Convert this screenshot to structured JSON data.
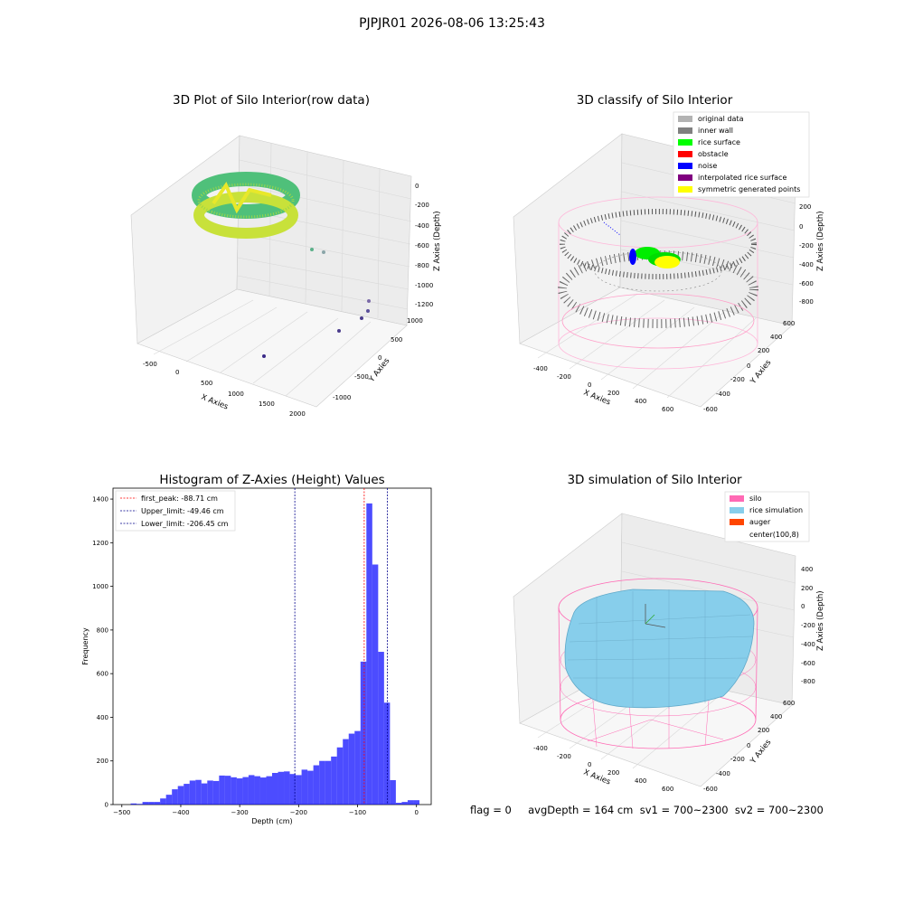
{
  "suptitle": "PJPJR01 2026-08-06 13:25:43",
  "panel1": {
    "title": "3D Plot of Silo Interior(row data)",
    "xlabel": "X Axies",
    "ylabel": "Y Axies",
    "zlabel": "Z Axies (Depth)",
    "xticks": [
      "-500",
      "0",
      "500",
      "1000",
      "1500",
      "2000"
    ],
    "yticks": [
      "-1000",
      "-500",
      "0",
      "500",
      "1000"
    ],
    "zticks": [
      "0",
      "-200",
      "-400",
      "-600",
      "-800",
      "-1000",
      "-1200"
    ]
  },
  "panel2": {
    "title": "3D classify of Silo Interior",
    "xlabel": "X Axies",
    "ylabel": "Y Axies",
    "zlabel": "Z Axies (Depth)",
    "xticks": [
      "-400",
      "-200",
      "0",
      "200",
      "400",
      "600"
    ],
    "yticks": [
      "-600",
      "-400",
      "-200",
      "0",
      "200",
      "400",
      "600"
    ],
    "zticks": [
      "200",
      "0",
      "-200",
      "-400",
      "-600",
      "-800"
    ],
    "legend": [
      {
        "label": "original data",
        "color": "#b3b3b3"
      },
      {
        "label": "inner wall",
        "color": "#808080"
      },
      {
        "label": "rice surface",
        "color": "#00ff00"
      },
      {
        "label": "obstacle",
        "color": "#ff0000"
      },
      {
        "label": "noise",
        "color": "#0000ff"
      },
      {
        "label": "interpolated rice surface",
        "color": "#800080"
      },
      {
        "label": "symmetric generated points",
        "color": "#ffff00"
      }
    ]
  },
  "panel4": {
    "title": "3D simulation of Silo Interior",
    "xlabel": "X Axies",
    "ylabel": "Y Axies",
    "zlabel": "Z Axies (Depth)",
    "xticks": [
      "-400",
      "-200",
      "0",
      "200",
      "400",
      "600"
    ],
    "yticks": [
      "-600",
      "-400",
      "-200",
      "0",
      "200",
      "400",
      "600"
    ],
    "zticks": [
      "400",
      "200",
      "0",
      "-200",
      "-400",
      "-600",
      "-800"
    ],
    "legend": [
      {
        "label": "silo",
        "color": "#ff69b4"
      },
      {
        "label": "rice simulation",
        "color": "#87ceeb"
      },
      {
        "label": "auger",
        "color": "#ff4500"
      },
      {
        "label": "center(100,8)",
        "color": "#ffffff"
      }
    ]
  },
  "status": "flag = 0     avgDepth = 164 cm  sv1 = 700~2300  sv2 = 700~2300",
  "chart_data": {
    "type": "bar",
    "title": "Histogram of Z-Axies (Height) Values",
    "xlabel": "Depth (cm)",
    "ylabel": "Frequency",
    "xlim": [
      -515,
      25
    ],
    "ylim": [
      0,
      1450
    ],
    "xticks": [
      -500,
      -400,
      -300,
      -200,
      -100,
      0
    ],
    "yticks": [
      0,
      200,
      400,
      600,
      800,
      1000,
      1200,
      1400
    ],
    "bin_width": 10,
    "bins": [
      {
        "x0": -485,
        "v": 5
      },
      {
        "x0": -475,
        "v": 3
      },
      {
        "x0": -465,
        "v": 12
      },
      {
        "x0": -455,
        "v": 12
      },
      {
        "x0": -445,
        "v": 12
      },
      {
        "x0": -435,
        "v": 28
      },
      {
        "x0": -425,
        "v": 45
      },
      {
        "x0": -415,
        "v": 70
      },
      {
        "x0": -405,
        "v": 85
      },
      {
        "x0": -395,
        "v": 95
      },
      {
        "x0": -385,
        "v": 110
      },
      {
        "x0": -375,
        "v": 113
      },
      {
        "x0": -365,
        "v": 97
      },
      {
        "x0": -355,
        "v": 110
      },
      {
        "x0": -345,
        "v": 108
      },
      {
        "x0": -335,
        "v": 133
      },
      {
        "x0": -325,
        "v": 132
      },
      {
        "x0": -315,
        "v": 125
      },
      {
        "x0": -305,
        "v": 120
      },
      {
        "x0": -295,
        "v": 126
      },
      {
        "x0": -285,
        "v": 135
      },
      {
        "x0": -275,
        "v": 130
      },
      {
        "x0": -265,
        "v": 124
      },
      {
        "x0": -255,
        "v": 130
      },
      {
        "x0": -245,
        "v": 145
      },
      {
        "x0": -235,
        "v": 150
      },
      {
        "x0": -225,
        "v": 152
      },
      {
        "x0": -215,
        "v": 140
      },
      {
        "x0": -205,
        "v": 135
      },
      {
        "x0": -195,
        "v": 160
      },
      {
        "x0": -185,
        "v": 155
      },
      {
        "x0": -175,
        "v": 180
      },
      {
        "x0": -165,
        "v": 200
      },
      {
        "x0": -155,
        "v": 200
      },
      {
        "x0": -145,
        "v": 220
      },
      {
        "x0": -135,
        "v": 262
      },
      {
        "x0": -125,
        "v": 300
      },
      {
        "x0": -115,
        "v": 325
      },
      {
        "x0": -105,
        "v": 337
      },
      {
        "x0": -95,
        "v": 655
      },
      {
        "x0": -85,
        "v": 1380
      },
      {
        "x0": -75,
        "v": 1100
      },
      {
        "x0": -65,
        "v": 700
      },
      {
        "x0": -55,
        "v": 467
      },
      {
        "x0": -45,
        "v": 112
      },
      {
        "x0": -35,
        "v": 8
      },
      {
        "x0": -25,
        "v": 12
      },
      {
        "x0": -15,
        "v": 20
      },
      {
        "x0": -5,
        "v": 20
      }
    ],
    "lines": [
      {
        "label": "first_peak: -88.71 cm",
        "x": -88.71,
        "color": "#ff0000"
      },
      {
        "label": "Upper_limit: -49.46 cm",
        "x": -49.46,
        "color": "#00008b"
      },
      {
        "label": "Lower_limit: -206.45 cm",
        "x": -206.45,
        "color": "#00008b"
      }
    ]
  }
}
